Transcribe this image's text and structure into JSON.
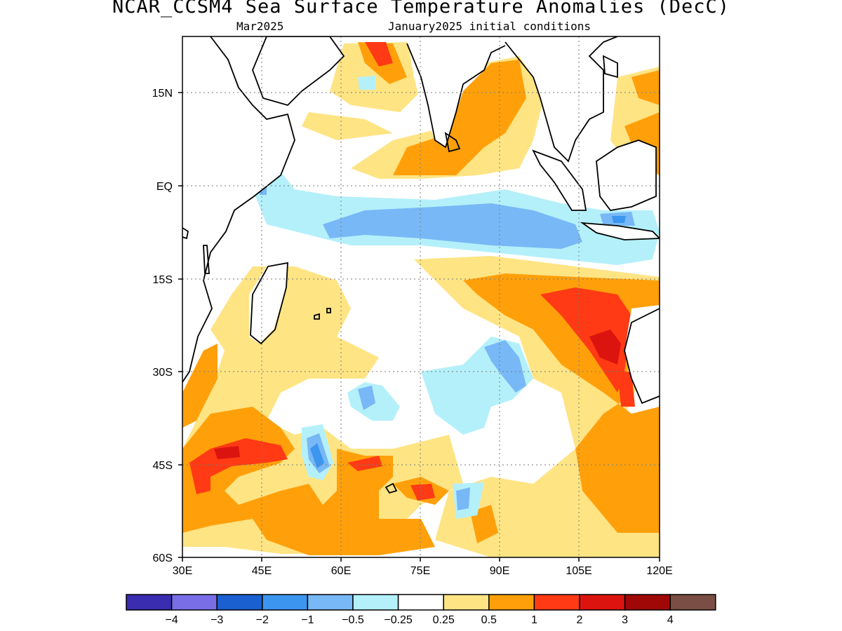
{
  "title": "NCAR_CCSM4 Sea Surface Temperature Anomalies (DecC)",
  "subtitle_left": "Mar2025",
  "subtitle_right": "January2025 initial conditions",
  "map": {
    "lon_range": [
      30,
      120
    ],
    "lat_range": [
      -60,
      24
    ],
    "x_ticks": [
      "30E",
      "45E",
      "60E",
      "75E",
      "90E",
      "105E",
      "120E"
    ],
    "y_ticks": [
      "15N",
      "EQ",
      "15S",
      "30S",
      "45S",
      "60S"
    ]
  },
  "colorbar": {
    "colors": [
      "#3a2db0",
      "#7a6ee6",
      "#1a60d0",
      "#3c96f0",
      "#78b8f6",
      "#b4f0fa",
      "#ffffff",
      "#ffe484",
      "#ffa00a",
      "#ff3a14",
      "#dc1410",
      "#a00808",
      "#7a4e44"
    ],
    "labels": [
      "−4",
      "−3",
      "−2",
      "−1",
      "−0.5",
      "−0.25",
      "0.25",
      "0.5",
      "1",
      "2",
      "3",
      "4"
    ]
  },
  "chart_data": {
    "type": "heatmap",
    "variable": "Sea Surface Temperature Anomalies (DecC)",
    "levels": [
      -4,
      -3,
      -2,
      -1,
      -0.5,
      -0.25,
      0.25,
      0.5,
      1,
      2,
      3,
      4
    ],
    "xlim": [
      30,
      120
    ],
    "ylim": [
      -60,
      24
    ],
    "x_ticks": [
      "30E",
      "45E",
      "60E",
      "75E",
      "90E",
      "105E",
      "120E"
    ],
    "y_ticks": [
      "15N",
      "EQ",
      "15S",
      "30S",
      "45S",
      "60S"
    ],
    "features": [
      {
        "region": "equatorial band 55E-100E, 2S-12S",
        "anomaly": -0.5
      },
      {
        "region": "west of Australia 100E-115E, 15S-28S",
        "anomaly": 2
      },
      {
        "region": "Bay of Bengal / Arabian Sea",
        "anomaly": 0.5
      },
      {
        "region": "southern Indian Ocean 35E-45E, 40S-46S",
        "anomaly": 2
      },
      {
        "region": "south of Africa 50E-60E, 43S-47S",
        "anomaly": -1
      }
    ]
  }
}
